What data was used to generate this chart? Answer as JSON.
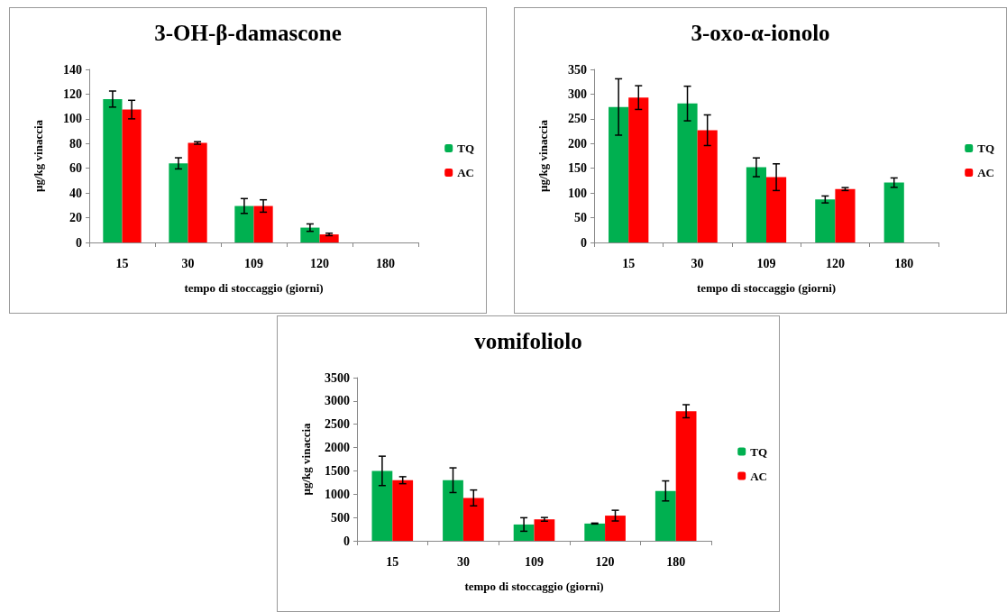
{
  "chart_data": [
    {
      "type": "bar",
      "title": "3-OH-β-damascone",
      "xlabel": "tempo di stoccaggio (giorni)",
      "ylabel": "µg/kg vinaccia",
      "categories": [
        "15",
        "30",
        "109",
        "120",
        "180"
      ],
      "ylim": [
        0,
        140
      ],
      "yticks": [
        0,
        20,
        40,
        60,
        80,
        100,
        120,
        140
      ],
      "grid": false,
      "legend": "right",
      "series": [
        {
          "name": "TQ",
          "color": "#00b050",
          "values": [
            116,
            64,
            29.5,
            12,
            null
          ],
          "errors": [
            6.5,
            4.5,
            6,
            3,
            null
          ]
        },
        {
          "name": "AC",
          "color": "#ff0000",
          "values": [
            107.5,
            80.5,
            29.5,
            6.5,
            null
          ],
          "errors": [
            7.5,
            1,
            5,
            1,
            null
          ]
        }
      ]
    },
    {
      "type": "bar",
      "title": "3-oxo-α-ionolo",
      "xlabel": "tempo di stoccaggio (giorni)",
      "ylabel": "µg/kg vinaccia",
      "categories": [
        "15",
        "30",
        "109",
        "120",
        "180"
      ],
      "ylim": [
        0,
        350
      ],
      "yticks": [
        0,
        50,
        100,
        150,
        200,
        250,
        300,
        350
      ],
      "grid": false,
      "legend": "right",
      "series": [
        {
          "name": "TQ",
          "color": "#00b050",
          "values": [
            274,
            281,
            152,
            87,
            121
          ],
          "errors": [
            57,
            35,
            19,
            7,
            9.5
          ]
        },
        {
          "name": "AC",
          "color": "#ff0000",
          "values": [
            293,
            227,
            132,
            108,
            null
          ],
          "errors": [
            24,
            31,
            27,
            3,
            null
          ]
        }
      ]
    },
    {
      "type": "bar",
      "title": "vomifoliolo",
      "xlabel": "tempo di stoccaggio (giorni)",
      "ylabel": "µg/kg vinaccia",
      "categories": [
        "15",
        "30",
        "109",
        "120",
        "180"
      ],
      "ylim": [
        0,
        3500
      ],
      "yticks": [
        0,
        500,
        1000,
        1500,
        2000,
        2500,
        3000,
        3500
      ],
      "grid": false,
      "legend": "right",
      "series": [
        {
          "name": "TQ",
          "color": "#00b050",
          "values": [
            1500,
            1300,
            350,
            370,
            1070
          ],
          "errors": [
            315,
            265,
            145,
            10,
            215
          ]
        },
        {
          "name": "AC",
          "color": "#ff0000",
          "values": [
            1300,
            920,
            460,
            540,
            2780
          ],
          "errors": [
            75,
            170,
            40,
            115,
            140
          ]
        }
      ]
    }
  ]
}
